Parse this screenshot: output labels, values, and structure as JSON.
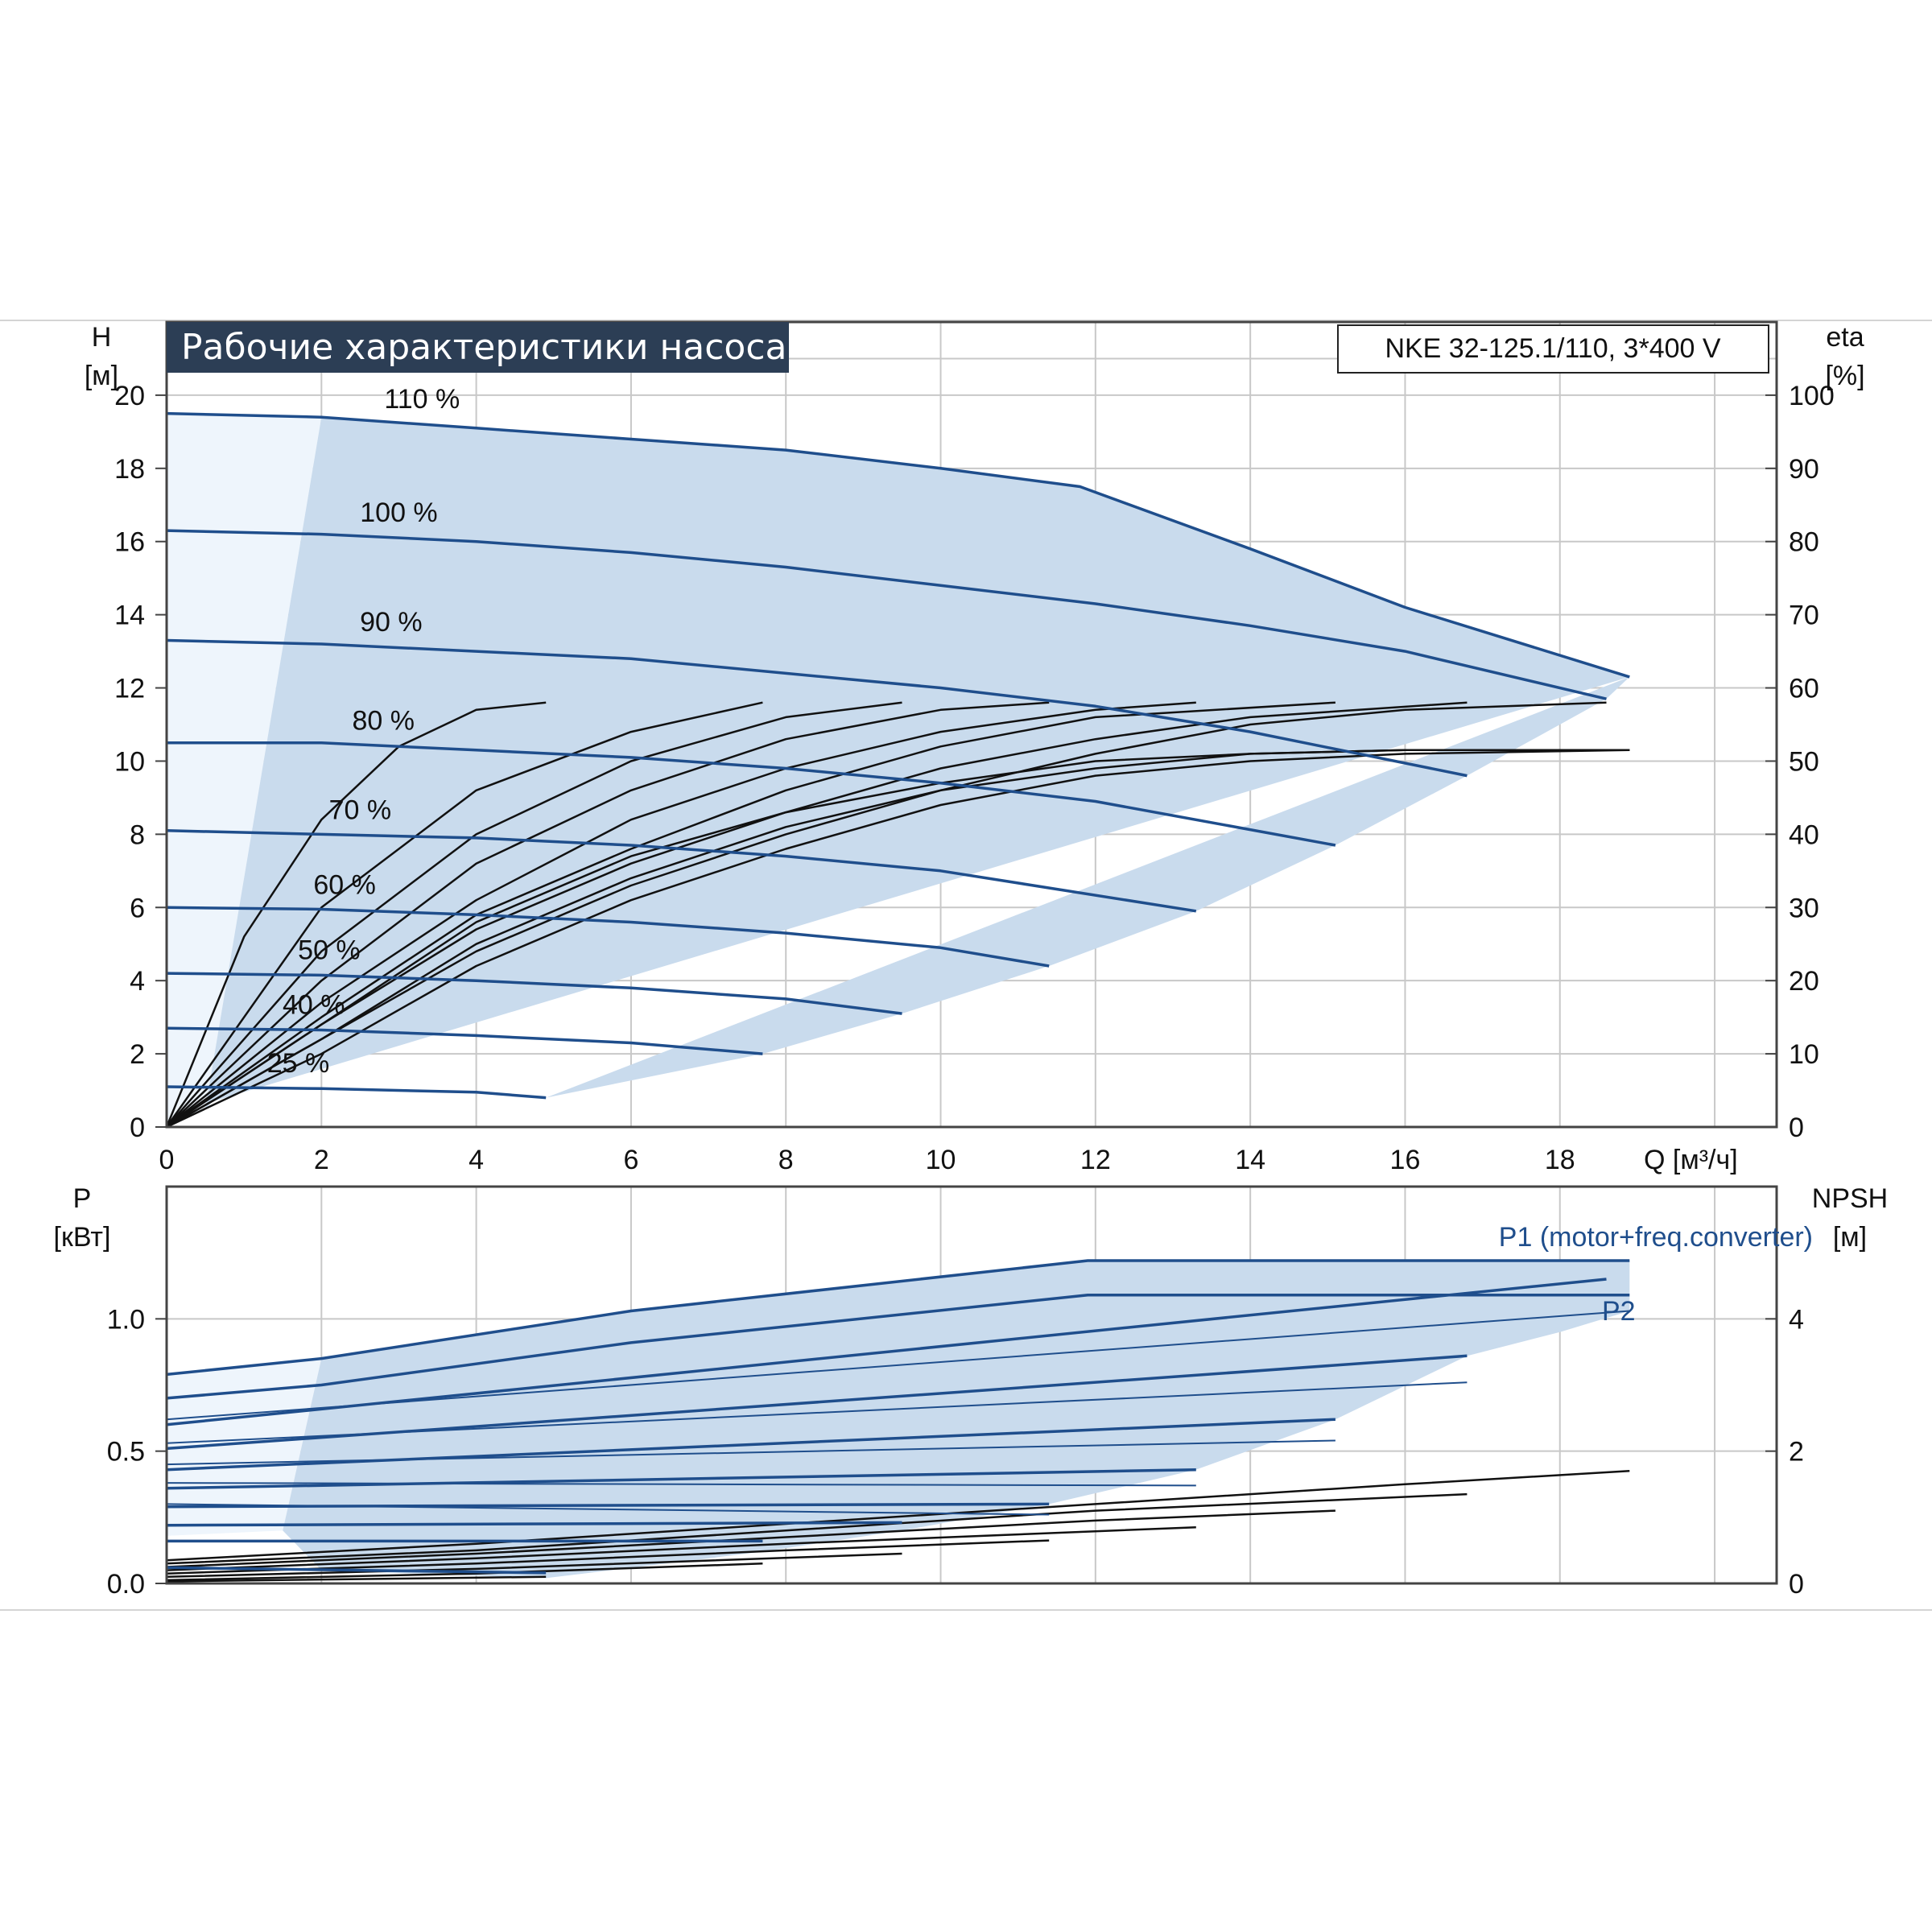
{
  "chart_data": [
    {
      "type": "line",
      "title": "Рабочие характеристики насоса",
      "model": "NKE 32-125.1/110, 3*400 V",
      "ylabel_left": "H",
      "ylabel_left_unit": "[м]",
      "ylabel_right": "eta",
      "ylabel_right_unit": "[%]",
      "xlabel": "Q [м³/ч]",
      "xlim": [
        0,
        20.8
      ],
      "ylim": [
        0,
        22
      ],
      "y2lim": [
        0,
        110
      ],
      "x_ticks": [
        0,
        2,
        4,
        6,
        8,
        10,
        12,
        14,
        16,
        18
      ],
      "y_ticks": [
        0,
        2,
        4,
        6,
        8,
        10,
        12,
        14,
        16,
        18,
        20
      ],
      "y2_ticks": [
        0,
        10,
        20,
        30,
        40,
        50,
        60,
        70,
        80,
        90,
        100
      ],
      "grid": true,
      "colors": {
        "head": "#1f4e8c",
        "efficiency": "#111111",
        "area": "#c9dbed",
        "area_light": "#eef5fc",
        "title_bg": "#2c3e55"
      },
      "head_curves": [
        {
          "name": "110 %",
          "x": [
            0,
            2,
            4,
            6,
            8,
            10,
            11.8,
            14,
            16,
            18.9
          ],
          "y": [
            19.5,
            19.4,
            19.1,
            18.8,
            18.5,
            18.0,
            17.5,
            15.8,
            14.2,
            12.3
          ]
        },
        {
          "name": "100 %",
          "x": [
            0,
            2,
            4,
            6,
            8,
            10,
            12,
            14,
            16,
            18.6
          ],
          "y": [
            16.3,
            16.2,
            16.0,
            15.7,
            15.3,
            14.8,
            14.3,
            13.7,
            13.0,
            11.7
          ]
        },
        {
          "name": "90 %",
          "x": [
            0,
            2,
            4,
            6,
            8,
            10,
            12,
            14,
            16.8
          ],
          "y": [
            13.3,
            13.2,
            13.0,
            12.8,
            12.4,
            12.0,
            11.5,
            10.8,
            9.6
          ]
        },
        {
          "name": "80 %",
          "x": [
            0,
            2,
            4,
            6,
            8,
            10,
            12,
            15.1
          ],
          "y": [
            10.5,
            10.5,
            10.3,
            10.1,
            9.8,
            9.4,
            8.9,
            7.7
          ]
        },
        {
          "name": "70 %",
          "x": [
            0,
            2,
            4,
            6,
            8,
            10,
            13.3
          ],
          "y": [
            8.1,
            8.0,
            7.9,
            7.7,
            7.4,
            7.0,
            5.9
          ]
        },
        {
          "name": "60 %",
          "x": [
            0,
            2,
            4,
            6,
            8,
            10,
            11.4
          ],
          "y": [
            6.0,
            5.95,
            5.8,
            5.6,
            5.3,
            4.9,
            4.4
          ]
        },
        {
          "name": "50 %",
          "x": [
            0,
            2,
            4,
            6,
            8,
            9.5
          ],
          "y": [
            4.2,
            4.15,
            4.0,
            3.8,
            3.5,
            3.1
          ]
        },
        {
          "name": "40 %",
          "x": [
            0,
            2,
            4,
            6,
            7.7
          ],
          "y": [
            2.7,
            2.65,
            2.5,
            2.3,
            2.0
          ]
        },
        {
          "name": "25 %",
          "x": [
            0,
            2,
            4,
            4.9
          ],
          "y": [
            1.1,
            1.05,
            0.95,
            0.8
          ]
        }
      ],
      "efficiency_curves": [
        {
          "x": [
            0,
            1,
            2,
            3,
            4,
            4.9
          ],
          "y": [
            0,
            26,
            42,
            52,
            57,
            58
          ]
        },
        {
          "x": [
            0,
            2,
            4,
            6,
            7.7
          ],
          "y": [
            0,
            30,
            46,
            54,
            58
          ]
        },
        {
          "x": [
            0,
            2,
            4,
            6,
            8,
            9.5
          ],
          "y": [
            0,
            24,
            40,
            50,
            56,
            58
          ]
        },
        {
          "x": [
            0,
            2,
            4,
            6,
            8,
            10,
            11.4
          ],
          "y": [
            0,
            20,
            36,
            46,
            53,
            57,
            58
          ]
        },
        {
          "x": [
            0,
            2,
            4,
            6,
            8,
            10,
            12,
            13.3
          ],
          "y": [
            0,
            17,
            31,
            42,
            49,
            54,
            57,
            58
          ]
        },
        {
          "x": [
            0,
            2,
            4,
            6,
            8,
            10,
            12,
            15.1
          ],
          "y": [
            0,
            15,
            29,
            38,
            46,
            52,
            56,
            58
          ]
        },
        {
          "x": [
            0,
            2,
            4,
            6,
            8,
            10,
            12,
            14,
            16.8
          ],
          "y": [
            0,
            14,
            27,
            36,
            43,
            49,
            53,
            56,
            58
          ]
        },
        {
          "x": [
            0,
            2,
            4,
            6,
            8,
            10,
            12,
            14,
            16,
            18.6
          ],
          "y": [
            0,
            12,
            24,
            33,
            40,
            46,
            51,
            55,
            57,
            58
          ]
        },
        {
          "x": [
            0,
            2,
            4,
            6,
            8,
            10,
            12,
            14,
            16,
            18.9
          ],
          "y": [
            0,
            14,
            28,
            37,
            43,
            47,
            50,
            51,
            51.5,
            51.5
          ]
        },
        {
          "x": [
            0,
            2,
            4,
            6,
            8,
            10,
            12,
            14,
            16,
            18.9
          ],
          "y": [
            0,
            12,
            25,
            34,
            41,
            46,
            49,
            51,
            51.5,
            51.5
          ]
        },
        {
          "x": [
            0,
            2,
            4,
            6,
            8,
            10,
            12,
            14,
            16,
            18.9
          ],
          "y": [
            0,
            10,
            22,
            31,
            38,
            44,
            48,
            50,
            51,
            51.5
          ]
        }
      ]
    },
    {
      "type": "line",
      "ylabel_left": "P",
      "ylabel_left_unit": "[кВт]",
      "ylabel_right": "NPSH",
      "ylabel_right_unit": "[м]",
      "p1_label": "P1 (motor+freq.converter)",
      "p2_label": "P2",
      "xlim": [
        0,
        20.8
      ],
      "ylim": [
        0,
        1.5
      ],
      "y2lim": [
        0,
        6
      ],
      "y_ticks": [
        "0.0",
        "0.5",
        "1.0"
      ],
      "y_tick_values": [
        0,
        0.5,
        1.0
      ],
      "y2_ticks": [
        0,
        2,
        4
      ],
      "grid": true,
      "p1_curves": [
        {
          "x": [
            0,
            2,
            6,
            11.9,
            18.9
          ],
          "y": [
            0.79,
            0.85,
            1.03,
            1.22,
            1.22
          ]
        },
        {
          "x": [
            0,
            2,
            6,
            11.9,
            18.9
          ],
          "y": [
            0.7,
            0.75,
            0.91,
            1.09,
            1.09
          ]
        },
        {
          "x": [
            0,
            18.6
          ],
          "y": [
            0.6,
            1.15
          ]
        },
        {
          "x": [
            0,
            16.8
          ],
          "y": [
            0.51,
            0.86
          ]
        },
        {
          "x": [
            0,
            15.1
          ],
          "y": [
            0.43,
            0.62
          ]
        },
        {
          "x": [
            0,
            13.3
          ],
          "y": [
            0.36,
            0.43
          ]
        },
        {
          "x": [
            0,
            11.4
          ],
          "y": [
            0.29,
            0.3
          ]
        },
        {
          "x": [
            0,
            9.5
          ],
          "y": [
            0.22,
            0.23
          ]
        },
        {
          "x": [
            0,
            7.7
          ],
          "y": [
            0.16,
            0.16
          ]
        },
        {
          "x": [
            0,
            4.9
          ],
          "y": [
            0.06,
            0.04
          ]
        }
      ],
      "p2_curves": [
        {
          "x": [
            0,
            18.9
          ],
          "y": [
            0.62,
            1.03
          ]
        },
        {
          "x": [
            0,
            16.8
          ],
          "y": [
            0.53,
            0.76
          ]
        },
        {
          "x": [
            0,
            15.1
          ],
          "y": [
            0.45,
            0.54
          ]
        },
        {
          "x": [
            0,
            13.3
          ],
          "y": [
            0.38,
            0.37
          ]
        },
        {
          "x": [
            0,
            11.4
          ],
          "y": [
            0.3,
            0.26
          ]
        }
      ],
      "npsh_curves": [
        {
          "x": [
            0,
            4,
            8,
            12,
            16,
            18.9
          ],
          "y": [
            0.35,
            0.6,
            0.9,
            1.2,
            1.5,
            1.7
          ]
        },
        {
          "x": [
            0,
            4,
            8,
            12,
            16.8
          ],
          "y": [
            0.3,
            0.5,
            0.8,
            1.1,
            1.35
          ]
        },
        {
          "x": [
            0,
            4,
            8,
            12,
            15.1
          ],
          "y": [
            0.25,
            0.45,
            0.7,
            0.95,
            1.1
          ]
        },
        {
          "x": [
            0,
            4,
            8,
            13.3
          ],
          "y": [
            0.2,
            0.38,
            0.6,
            0.85
          ]
        },
        {
          "x": [
            0,
            4,
            8,
            11.4
          ],
          "y": [
            0.15,
            0.3,
            0.5,
            0.65
          ]
        },
        {
          "x": [
            0,
            4,
            9.5
          ],
          "y": [
            0.1,
            0.22,
            0.45
          ]
        },
        {
          "x": [
            0,
            4,
            7.7
          ],
          "y": [
            0.05,
            0.15,
            0.3
          ]
        },
        {
          "x": [
            0,
            4.9
          ],
          "y": [
            0.03,
            0.1
          ]
        }
      ]
    }
  ]
}
